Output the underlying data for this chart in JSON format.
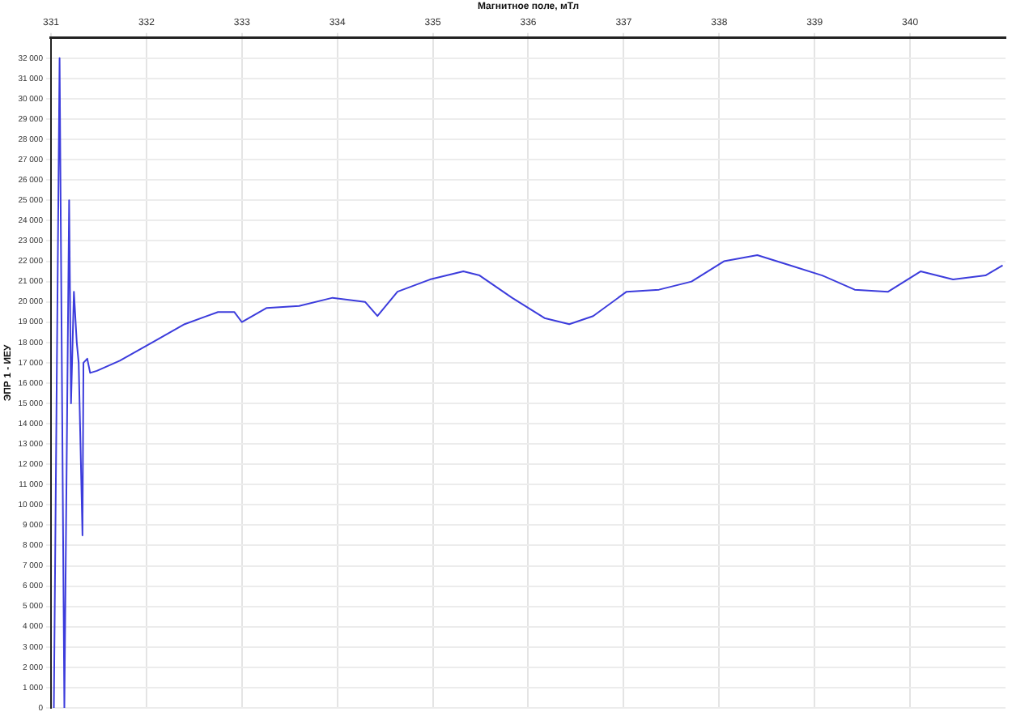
{
  "chart_data": {
    "type": "line",
    "xlabel": "Магнитное поле, мТл",
    "ylabel": "ЭПР 1 - ИЕУ",
    "xlim": [
      331,
      341
    ],
    "xticks": [
      331,
      332,
      333,
      334,
      335,
      336,
      337,
      338,
      339,
      340
    ],
    "ylim": [
      0,
      33000
    ],
    "yticks": [
      {
        "value": 0,
        "label": "0"
      },
      {
        "value": 1000,
        "label": "1 000"
      },
      {
        "value": 2000,
        "label": "2 000"
      },
      {
        "value": 3000,
        "label": "3 000"
      },
      {
        "value": 4000,
        "label": "4 000"
      },
      {
        "value": 5000,
        "label": "5 000"
      },
      {
        "value": 6000,
        "label": "6 000"
      },
      {
        "value": 7000,
        "label": "7 000"
      },
      {
        "value": 8000,
        "label": "8 000"
      },
      {
        "value": 9000,
        "label": "9 000"
      },
      {
        "value": 10000,
        "label": "10 000"
      },
      {
        "value": 11000,
        "label": "11 000"
      },
      {
        "value": 12000,
        "label": "12 000"
      },
      {
        "value": 13000,
        "label": "13 000"
      },
      {
        "value": 14000,
        "label": "14 000"
      },
      {
        "value": 15000,
        "label": "15 000"
      },
      {
        "value": 16000,
        "label": "16 000"
      },
      {
        "value": 17000,
        "label": "17 000"
      },
      {
        "value": 18000,
        "label": "18 000"
      },
      {
        "value": 19000,
        "label": "19 000"
      },
      {
        "value": 20000,
        "label": "20 000"
      },
      {
        "value": 21000,
        "label": "21 000"
      },
      {
        "value": 22000,
        "label": "22 000"
      },
      {
        "value": 23000,
        "label": "23 000"
      },
      {
        "value": 24000,
        "label": "24 000"
      },
      {
        "value": 25000,
        "label": "25 000"
      },
      {
        "value": 26000,
        "label": "26 000"
      },
      {
        "value": 27000,
        "label": "27 000"
      },
      {
        "value": 28000,
        "label": "28 000"
      },
      {
        "value": 29000,
        "label": "29 000"
      },
      {
        "value": 30000,
        "label": "30 000"
      },
      {
        "value": 31000,
        "label": "31 000"
      },
      {
        "value": 32000,
        "label": "32 000"
      }
    ],
    "grid": true,
    "legend": false,
    "marker": "none",
    "line_style": "solid",
    "series": [
      {
        "color": "#3c3cdc",
        "x": [
          331.03,
          331.09,
          331.14,
          331.19,
          331.21,
          331.24,
          331.27,
          331.29,
          331.33,
          331.34,
          331.38,
          331.41,
          331.48,
          331.72,
          332.06,
          332.4,
          332.75,
          332.92,
          333.0,
          333.26,
          333.6,
          333.95,
          334.29,
          334.42,
          334.63,
          334.97,
          335.32,
          335.49,
          335.83,
          336.17,
          336.43,
          336.68,
          337.03,
          337.37,
          337.71,
          338.05,
          338.4,
          338.74,
          339.08,
          339.42,
          339.77,
          340.11,
          340.45,
          340.79,
          340.97
        ],
        "values": [
          0,
          32000,
          0,
          25000,
          15000,
          20500,
          18000,
          17000,
          8500,
          17000,
          17200,
          16500,
          16600,
          17100,
          18000,
          18900,
          19500,
          19500,
          19000,
          19700,
          19800,
          20200,
          20000,
          19300,
          20500,
          21100,
          21500,
          21300,
          20200,
          19200,
          18900,
          19300,
          20500,
          20600,
          21000,
          22000,
          22300,
          21800,
          21300,
          20600,
          20500,
          21500,
          21100,
          21300,
          21800
        ]
      }
    ]
  }
}
